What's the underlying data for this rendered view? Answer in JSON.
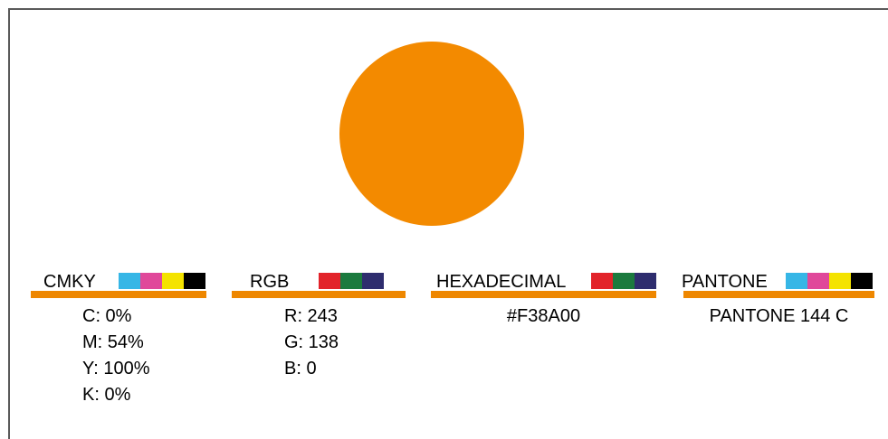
{
  "color": {
    "hex_value": "#F38A00",
    "bar_color": "#EE8700"
  },
  "cmyk": {
    "title": "CMKY",
    "chips": [
      "#36B6E6",
      "#E0489A",
      "#F4E300",
      "#000000"
    ],
    "values": [
      "C: 0%",
      "M: 54%",
      "Y: 100%",
      "K: 0%"
    ]
  },
  "rgb": {
    "title": "RGB",
    "chips": [
      "#E2232A",
      "#1B7A3E",
      "#2E2D6E"
    ],
    "values": [
      "R: 243",
      "G: 138",
      "B: 0"
    ]
  },
  "hex": {
    "title": "HEXADECIMAL",
    "chips": [
      "#E2232A",
      "#1B7A3E",
      "#2E2D6E"
    ],
    "values": [
      "#F38A00"
    ]
  },
  "pantone": {
    "title": "PANTONE",
    "chips": [
      "#36B6E6",
      "#E0489A",
      "#F4E300",
      "#000000"
    ],
    "values": [
      "PANTONE 144 C"
    ]
  }
}
